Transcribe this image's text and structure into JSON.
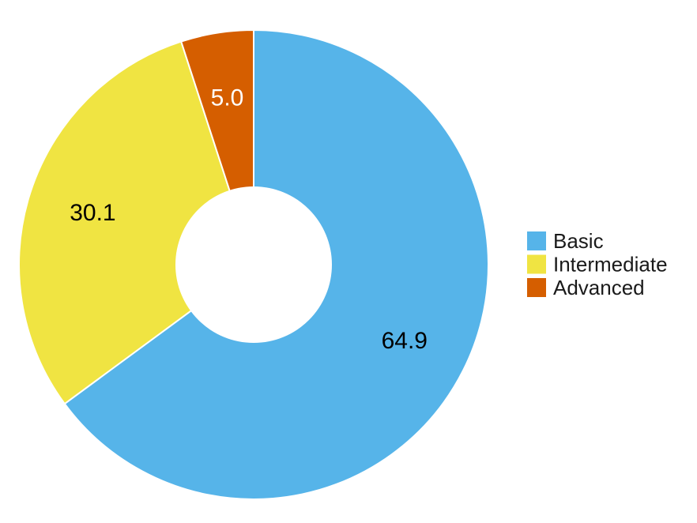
{
  "chart_data": {
    "type": "pie",
    "title": "",
    "donut": true,
    "start_angle_deg": 0,
    "direction": "clockwise",
    "slices": [
      {
        "name": "Basic",
        "value": 64.9,
        "value_label": "64.9",
        "color": "#56B4E9",
        "label_color": "#000000"
      },
      {
        "name": "Intermediate",
        "value": 30.1,
        "value_label": "30.1",
        "color": "#F0E442",
        "label_color": "#000000"
      },
      {
        "name": "Advanced",
        "value": 5.0,
        "value_label": "5.0",
        "color": "#D55E00",
        "label_color": "#ffffff"
      }
    ],
    "legend": {
      "position": "right",
      "entries": [
        "Basic",
        "Intermediate",
        "Advanced"
      ]
    }
  }
}
